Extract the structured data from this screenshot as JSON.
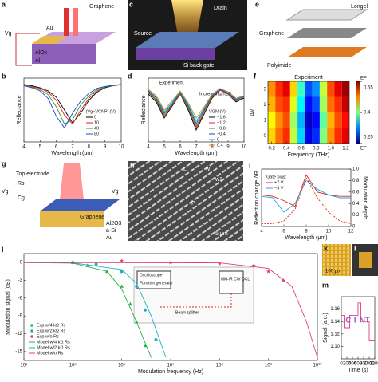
{
  "figures": [
    {
      "label": "a",
      "texts": [
        "Graphene",
        "Au",
        "Vg",
        "AlOx",
        "Al"
      ]
    },
    {
      "label": "c",
      "texts": [
        "Drain",
        "Source",
        "Si back gate"
      ]
    },
    {
      "label": "e",
      "texts": [
        "Longel",
        "Graphene",
        "Polyimide"
      ]
    },
    {
      "label": "g",
      "texts": [
        "Top electrode",
        "Graphene",
        "Al2O3",
        "a-Si",
        "Au",
        "Vg",
        "Rs",
        "Cg",
        "Vg"
      ]
    },
    {
      "label": "h",
      "texts": [
        "5 μm",
        "L",
        "w",
        "w1",
        "P"
      ]
    },
    {
      "label": "k",
      "texts": [
        "100 μm"
      ]
    },
    {
      "label": "l",
      "texts": []
    }
  ],
  "chart_data": [
    {
      "type": "line",
      "label": "b",
      "xlabel": "Wavelength (μm)",
      "ylabel": "Reflectance",
      "xlim": [
        4,
        10
      ],
      "xticks": [
        4,
        5,
        6,
        7,
        8,
        9,
        10
      ],
      "ylim": [
        0,
        1
      ],
      "legend_title": "|Vg−VCNP| (V)",
      "x": [
        4,
        4.5,
        5,
        5.5,
        6,
        6.5,
        7,
        7.5,
        8,
        8.5,
        9,
        9.5,
        10
      ],
      "series": [
        {
          "name": "0",
          "color": "#000000",
          "values": [
            0.9,
            0.88,
            0.85,
            0.8,
            0.7,
            0.5,
            0.3,
            0.45,
            0.65,
            0.78,
            0.85,
            0.88,
            0.9
          ]
        },
        {
          "name": "10",
          "color": "#e0201c",
          "values": [
            0.9,
            0.87,
            0.84,
            0.78,
            0.65,
            0.42,
            0.28,
            0.5,
            0.68,
            0.8,
            0.86,
            0.88,
            0.9
          ]
        },
        {
          "name": "40",
          "color": "#2a9a2a",
          "values": [
            0.89,
            0.86,
            0.82,
            0.74,
            0.55,
            0.28,
            0.35,
            0.58,
            0.72,
            0.82,
            0.86,
            0.88,
            0.9
          ]
        },
        {
          "name": "80",
          "color": "#1f3fd0",
          "values": [
            0.88,
            0.85,
            0.8,
            0.68,
            0.4,
            0.22,
            0.45,
            0.64,
            0.76,
            0.84,
            0.87,
            0.89,
            0.9
          ]
        }
      ]
    },
    {
      "type": "line",
      "label": "d",
      "xlabel": "Wavelength (μm)",
      "ylabel": "Reflectance",
      "xlim": [
        4,
        10
      ],
      "xticks": [
        4,
        5,
        6,
        7,
        8,
        9,
        10
      ],
      "ylim": [
        0.2,
        1
      ],
      "annotations": [
        "Experiment",
        "Increasing n2D"
      ],
      "legend_title": "VGN (V)",
      "x": [
        4,
        4.5,
        5,
        5.5,
        6,
        6.5,
        7,
        7.5,
        8,
        8.5,
        9,
        9.5,
        10
      ],
      "series": [
        {
          "name": "−1.6",
          "color": "#000000",
          "values": [
            0.8,
            0.7,
            0.5,
            0.65,
            0.8,
            0.6,
            0.35,
            0.55,
            0.75,
            0.85,
            0.8,
            0.7,
            0.75
          ]
        },
        {
          "name": "−1.2",
          "color": "#e0201c",
          "values": [
            0.82,
            0.72,
            0.52,
            0.66,
            0.8,
            0.62,
            0.38,
            0.56,
            0.76,
            0.85,
            0.8,
            0.71,
            0.76
          ]
        },
        {
          "name": "−0.8",
          "color": "#2a9a2a",
          "values": [
            0.83,
            0.73,
            0.54,
            0.67,
            0.81,
            0.63,
            0.4,
            0.58,
            0.77,
            0.86,
            0.81,
            0.72,
            0.76
          ]
        },
        {
          "name": "−0.4",
          "color": "#1f3fd0",
          "values": [
            0.84,
            0.75,
            0.56,
            0.68,
            0.82,
            0.65,
            0.43,
            0.6,
            0.78,
            0.86,
            0.81,
            0.73,
            0.77
          ]
        },
        {
          "name": "0",
          "color": "#1aa7b0",
          "values": [
            0.85,
            0.76,
            0.58,
            0.7,
            0.83,
            0.67,
            0.46,
            0.62,
            0.79,
            0.87,
            0.82,
            0.74,
            0.78
          ]
        },
        {
          "name": "0.4",
          "color": "#e08a1c",
          "values": [
            0.86,
            0.78,
            0.6,
            0.72,
            0.84,
            0.69,
            0.5,
            0.64,
            0.8,
            0.87,
            0.83,
            0.75,
            0.78
          ]
        }
      ]
    },
    {
      "type": "heatmap",
      "label": "f",
      "title": "Experiment",
      "xlabel": "Frequency (THz)",
      "ylabel": "ΔV",
      "xlim": [
        0.15,
        1.25
      ],
      "xticks": [
        0.2,
        0.4,
        0.6,
        0.8,
        {
          "value": 1,
          "label": "1.0"
        },
        1.2
      ],
      "ylim": [
        -0.5,
        3.5
      ],
      "yticks": [
        0,
        1,
        2,
        3
      ],
      "clim": [
        0.25,
        0.55
      ],
      "cticks": [
        0.25,
        0.4,
        0.55
      ],
      "annotations": [
        "EF",
        "EF"
      ],
      "x": [
        0.2,
        0.3,
        0.4,
        0.5,
        0.6,
        0.7,
        0.8,
        0.9,
        1.0,
        1.1,
        1.2
      ],
      "y": [
        0,
        1,
        2,
        3
      ],
      "z": [
        [
          0.45,
          0.48,
          0.5,
          0.42,
          0.35,
          0.28,
          0.3,
          0.4,
          0.47,
          0.5,
          0.52
        ],
        [
          0.44,
          0.47,
          0.49,
          0.41,
          0.34,
          0.27,
          0.29,
          0.39,
          0.46,
          0.49,
          0.51
        ],
        [
          0.46,
          0.49,
          0.5,
          0.43,
          0.36,
          0.29,
          0.31,
          0.41,
          0.48,
          0.5,
          0.53
        ],
        [
          0.47,
          0.5,
          0.52,
          0.45,
          0.38,
          0.31,
          0.33,
          0.42,
          0.49,
          0.52,
          0.54
        ]
      ]
    },
    {
      "type": "line",
      "label": "i",
      "xlabel": "Wavelength (μm)",
      "ylabel": "Reflection change ΔR",
      "y2label": "Modulation depth",
      "legend_title": "Gate bias:",
      "xlim": [
        4,
        12
      ],
      "xticks": [
        4,
        6,
        8,
        10,
        12
      ],
      "ylim": [
        -1,
        1
      ],
      "y2lim": [
        0,
        1
      ],
      "y2ticks": [
        0,
        0.2,
        0.4,
        0.6,
        0.8,
        {
          "value": 1,
          "label": "1.0"
        }
      ],
      "x": [
        4,
        5,
        6,
        7,
        8,
        9,
        10,
        11,
        12
      ],
      "series": [
        {
          "name": "+7 V",
          "color": "#e0201c",
          "values": [
            0.1,
            0.05,
            -0.1,
            -0.3,
            0.8,
            0.2,
            0.1,
            0.05,
            0.05
          ]
        },
        {
          "name": "−3 V",
          "color": "#1fa7e0",
          "values": [
            0.05,
            0.0,
            -0.5,
            -0.2,
            0.6,
            0.3,
            0.1,
            0.0,
            0.0
          ]
        },
        {
          "color": "#e0201c",
          "axis": "y2",
          "values": [
            0.05,
            0.05,
            0.1,
            0.3,
            0.85,
            0.5,
            0.25,
            0.1,
            0.05
          ]
        }
      ]
    },
    {
      "type": "mixed",
      "label": "j",
      "xlabel": "Modulation frequency (Hz)",
      "ylabel": "Modulation signal (dB)",
      "xlog": true,
      "xlim": [
        10000,
        10000000000
      ],
      "xticks": [
        {
          "value": 10000,
          "label": "10⁴"
        },
        {
          "value": 100000,
          "label": "10⁵"
        },
        {
          "value": 1000000,
          "label": "10⁶"
        },
        {
          "value": 10000000,
          "label": "10⁷"
        },
        {
          "value": 100000000,
          "label": "10⁸"
        },
        {
          "value": 1000000000,
          "label": "10⁹"
        },
        {
          "value": 10000000000,
          "label": "10¹⁰"
        }
      ],
      "ylim": [
        -16.5,
        1.5
      ],
      "yticks": [
        0,
        -3,
        -6,
        -9,
        -12,
        -15
      ],
      "inset_texts": [
        "Oscilloscope",
        "Function generator",
        "Beam splitter",
        "Mid-IR CW QCL"
      ],
      "series": [
        {
          "name": "Exp w/4 kΩ Rs",
          "color": "#2ab04a",
          "style": "triangle",
          "x": [
            100000,
            200000,
            500000,
            1000000,
            1500000,
            2000000,
            3000000
          ],
          "values": [
            0,
            -0.5,
            -1.5,
            -4,
            -7,
            -10,
            -14
          ]
        },
        {
          "name": "Exp w/2 kΩ Rs",
          "color": "#1fb0c0",
          "style": "circle",
          "x": [
            100000,
            300000,
            1000000,
            2000000,
            3000000,
            5000000
          ],
          "values": [
            0,
            -0.3,
            -1.5,
            -4,
            -8,
            -13
          ]
        },
        {
          "name": "Exp w/o Rs",
          "color": "#e0407a",
          "style": "star",
          "x": [
            100000,
            1000000,
            10000000,
            100000000,
            500000000,
            1000000000,
            2000000000
          ],
          "values": [
            0,
            0.3,
            0,
            -0.2,
            -0.5,
            -1.5,
            -3
          ]
        },
        {
          "name": "Model w/4 kΩ Rs",
          "color": "#2ab04a",
          "style": "line",
          "x": [
            10000,
            100000,
            500000,
            1000000,
            2000000,
            4000000
          ],
          "values": [
            0,
            -0.1,
            -1.5,
            -4.5,
            -10,
            -16
          ]
        },
        {
          "name": "Model w/2 kΩ Rs",
          "color": "#1fb0c0",
          "style": "line",
          "x": [
            10000,
            100000,
            1000000,
            2000000,
            4000000,
            8000000
          ],
          "values": [
            0,
            -0.05,
            -1.2,
            -3.5,
            -9,
            -16
          ]
        },
        {
          "name": "Model w/o Rs",
          "color": "#e0407a",
          "style": "line",
          "x": [
            10000,
            100000000,
            1000000000,
            3000000000,
            6000000000,
            10000000000
          ],
          "values": [
            0,
            -0.05,
            -1,
            -4,
            -10,
            -16
          ]
        }
      ]
    },
    {
      "type": "line",
      "label": "m",
      "xlabel": "Time (s)",
      "ylabel": "Signal (a.u.)",
      "xlim": [
        0,
        1200
      ],
      "xticks": [
        0,
        200,
        400,
        600,
        800,
        1000,
        1200
      ],
      "ylim": [
        1.08,
        1.18
      ],
      "yticks": [
        {
          "value": 1.1,
          "label": "1.10"
        },
        1.12,
        1.14,
        1.16
      ],
      "annotations": [
        "C",
        "I",
        "N",
        "T"
      ],
      "x": [
        0,
        100,
        100,
        300,
        300,
        600,
        600,
        700,
        700,
        1000,
        1000,
        1200
      ],
      "series": [
        {
          "color": "#e0407a",
          "values": [
            1.15,
            1.15,
            1.13,
            1.13,
            1.15,
            1.15,
            1.17,
            1.17,
            1.14,
            1.14,
            1.11,
            1.11
          ]
        }
      ]
    }
  ]
}
